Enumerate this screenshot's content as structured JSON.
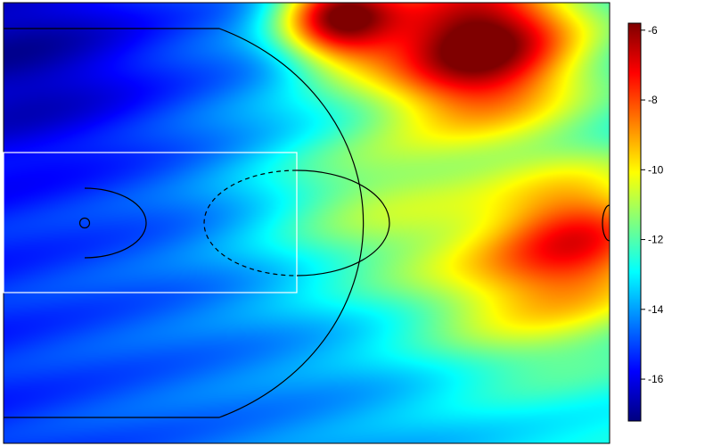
{
  "chart_data": {
    "type": "heatmap",
    "title": "",
    "xlabel": "",
    "ylabel": "",
    "colorbar": {
      "range": [
        -17.2,
        -5.8
      ],
      "ticks": [
        -6,
        -8,
        -10,
        -12,
        -14,
        -16
      ],
      "tick_labels": [
        "-6",
        "-8",
        "-10",
        "-12",
        "-14",
        "-16"
      ],
      "colormap": [
        "#00007f",
        "#0000ff",
        "#007fff",
        "#00ffff",
        "#7fff7f",
        "#ffff00",
        "#ff7f00",
        "#ff0000",
        "#7f0000"
      ]
    },
    "value_hotspots": [
      {
        "x": 0.78,
        "y": 0.09,
        "value": -6.2,
        "spread": 0.12
      },
      {
        "x": 0.55,
        "y": 0.03,
        "value": -7.5,
        "spread": 0.07
      },
      {
        "x": 0.96,
        "y": 0.52,
        "value": -10.3,
        "spread": 0.1
      },
      {
        "x": 0.85,
        "y": 0.65,
        "value": -11.5,
        "spread": 0.13
      },
      {
        "x": 0.6,
        "y": 0.45,
        "value": -12.0,
        "spread": 0.14
      },
      {
        "x": 0.05,
        "y": 0.12,
        "value": -16.2,
        "spread": 0.16
      }
    ],
    "baseline_value": -14.6,
    "court_overlay": "basketball half-court"
  },
  "colors": {
    "court_lines": "#000000",
    "paint_box": "#ffffff",
    "frame": "#000000"
  }
}
